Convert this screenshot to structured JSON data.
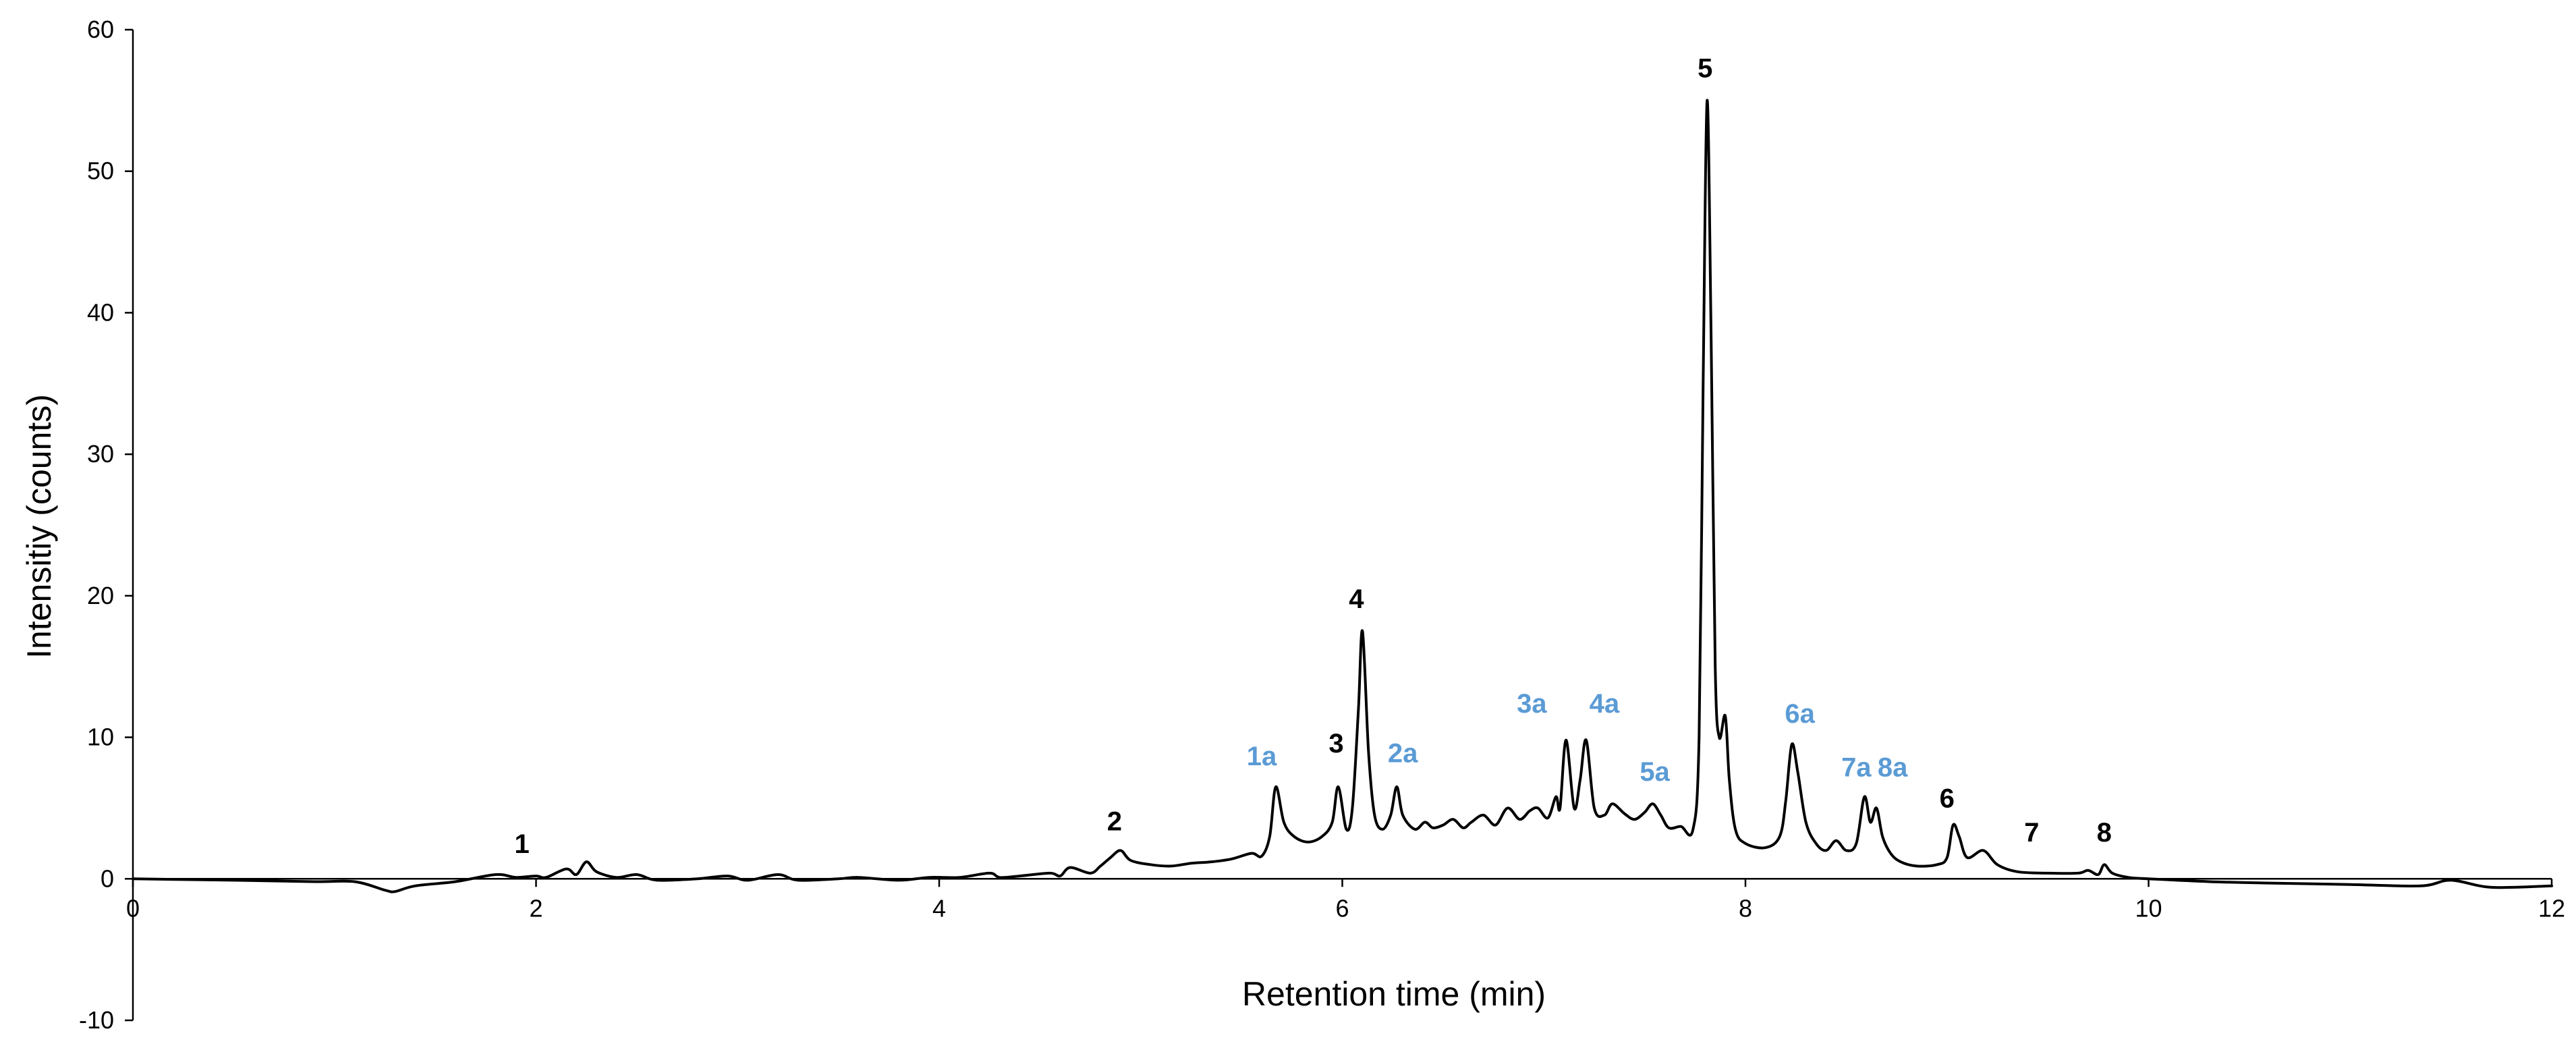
{
  "chart_data": {
    "type": "line",
    "title": "",
    "xlabel": "Retention time (min)",
    "ylabel": "Intensitiy (counts)",
    "xlim": [
      0,
      12
    ],
    "ylim": [
      -10,
      60
    ],
    "x_ticks": [
      "0",
      "2",
      "4",
      "6",
      "8",
      "10",
      "12"
    ],
    "y_ticks": [
      "-10",
      "0",
      "10",
      "20",
      "30",
      "40",
      "50",
      "60"
    ],
    "grid": false,
    "legend": "none",
    "colors": {
      "trace": "#000000",
      "primary_label": "#000000",
      "secondary_label": "#5b9bd5"
    },
    "series": [
      {
        "x": [
          0,
          0.5,
          0.9,
          1.1,
          1.25,
          1.3,
          1.4,
          1.6,
          1.8,
          1.9,
          2.0,
          2.05,
          2.15,
          2.2,
          2.25,
          2.3,
          2.4,
          2.5,
          2.6,
          2.8,
          2.95,
          3.05,
          3.2,
          3.3,
          3.5,
          3.6,
          3.8,
          3.95,
          4.1,
          4.25,
          4.3,
          4.4,
          4.55,
          4.6,
          4.65,
          4.75,
          4.8,
          4.85,
          4.9,
          4.95,
          5.05,
          5.15,
          5.25,
          5.35,
          5.45,
          5.55,
          5.6,
          5.64,
          5.67,
          5.71,
          5.76,
          5.83,
          5.9,
          5.95,
          5.98,
          6.02,
          6.05,
          6.08,
          6.1,
          6.13,
          6.16,
          6.2,
          6.24,
          6.27,
          6.3,
          6.36,
          6.41,
          6.45,
          6.5,
          6.55,
          6.6,
          6.64,
          6.7,
          6.76,
          6.82,
          6.88,
          6.93,
          6.97,
          7.02,
          7.06,
          7.08,
          7.11,
          7.15,
          7.18,
          7.21,
          7.25,
          7.3,
          7.34,
          7.4,
          7.45,
          7.5,
          7.54,
          7.58,
          7.62,
          7.68,
          7.74,
          7.77,
          7.79,
          7.81,
          7.83,
          7.85,
          7.87,
          7.9,
          7.92,
          7.95,
          8.0,
          8.1,
          8.17,
          8.2,
          8.23,
          8.26,
          8.3,
          8.35,
          8.4,
          8.45,
          8.5,
          8.55,
          8.59,
          8.62,
          8.65,
          8.68,
          8.72,
          8.77,
          8.85,
          8.95,
          9.0,
          9.03,
          9.06,
          9.1,
          9.18,
          9.25,
          9.35,
          9.5,
          9.65,
          9.7,
          9.75,
          9.78,
          9.82,
          9.9,
          10.0,
          10.3,
          10.6,
          11.0,
          11.35,
          11.5,
          11.7,
          12.0
        ],
        "y": [
          0,
          -0.1,
          -0.2,
          -0.2,
          -0.8,
          -0.9,
          -0.5,
          -0.2,
          0.3,
          0.1,
          0.2,
          0.1,
          0.7,
          0.3,
          1.2,
          0.5,
          0.1,
          0.3,
          -0.1,
          0,
          0.2,
          -0.1,
          0.3,
          -0.1,
          0,
          0.1,
          -0.1,
          0.1,
          0.1,
          0.4,
          0.1,
          0.2,
          0.4,
          0.2,
          0.8,
          0.4,
          0.9,
          1.5,
          2,
          1.3,
          1.0,
          0.9,
          1.1,
          1.2,
          1.4,
          1.8,
          1.6,
          3.0,
          6.5,
          4.0,
          3.0,
          2.6,
          3.0,
          4.0,
          6.5,
          3.5,
          5.0,
          12,
          17.5,
          9,
          4.5,
          3.5,
          4.5,
          6.5,
          4.5,
          3.5,
          4.0,
          3.6,
          3.8,
          4.2,
          3.6,
          4.0,
          4.5,
          3.8,
          5.0,
          4.2,
          4.8,
          5.0,
          4.3,
          5.8,
          5.0,
          9.8,
          5.0,
          7.0,
          9.8,
          5.0,
          4.5,
          5.3,
          4.6,
          4.2,
          4.7,
          5.3,
          4.5,
          3.6,
          3.7,
          3.5,
          10,
          35,
          55,
          38,
          15,
          10,
          11.5,
          7,
          3.5,
          2.5,
          2.2,
          3.0,
          5.5,
          9.5,
          7.5,
          4.0,
          2.5,
          2.0,
          2.7,
          2.0,
          2.5,
          5.8,
          4.0,
          5.0,
          3.0,
          1.8,
          1.2,
          0.9,
          1.0,
          1.5,
          3.8,
          3.0,
          1.5,
          2.0,
          1.0,
          0.5,
          0.4,
          0.4,
          0.6,
          0.3,
          1.0,
          0.4,
          0.1,
          0,
          -0.2,
          -0.3,
          -0.4,
          -0.5,
          -0.1,
          -0.6,
          -0.5
        ]
      }
    ],
    "annotations": [
      {
        "text": "1",
        "x": 1.93,
        "y": 2.5,
        "group": "primary"
      },
      {
        "text": "2",
        "x": 4.87,
        "y": 4.1,
        "group": "primary"
      },
      {
        "text": "1a",
        "x": 5.6,
        "y": 8.7,
        "group": "secondary"
      },
      {
        "text": "3",
        "x": 5.97,
        "y": 9.6,
        "group": "primary"
      },
      {
        "text": "2a",
        "x": 6.3,
        "y": 8.9,
        "group": "secondary"
      },
      {
        "text": "4",
        "x": 6.07,
        "y": 19.8,
        "group": "primary"
      },
      {
        "text": "3a",
        "x": 6.94,
        "y": 12.4,
        "group": "secondary"
      },
      {
        "text": "4a",
        "x": 7.3,
        "y": 12.4,
        "group": "secondary"
      },
      {
        "text": "5a",
        "x": 7.55,
        "y": 7.6,
        "group": "secondary"
      },
      {
        "text": "5",
        "x": 7.8,
        "y": 57.3,
        "group": "primary"
      },
      {
        "text": "6a",
        "x": 8.27,
        "y": 11.7,
        "group": "secondary"
      },
      {
        "text": "7a",
        "x": 8.55,
        "y": 7.9,
        "group": "secondary"
      },
      {
        "text": "8a",
        "x": 8.73,
        "y": 7.9,
        "group": "secondary"
      },
      {
        "text": "6",
        "x": 9.0,
        "y": 5.7,
        "group": "primary"
      },
      {
        "text": "7",
        "x": 9.42,
        "y": 3.3,
        "group": "primary"
      },
      {
        "text": "8",
        "x": 9.78,
        "y": 3.3,
        "group": "primary"
      }
    ]
  }
}
